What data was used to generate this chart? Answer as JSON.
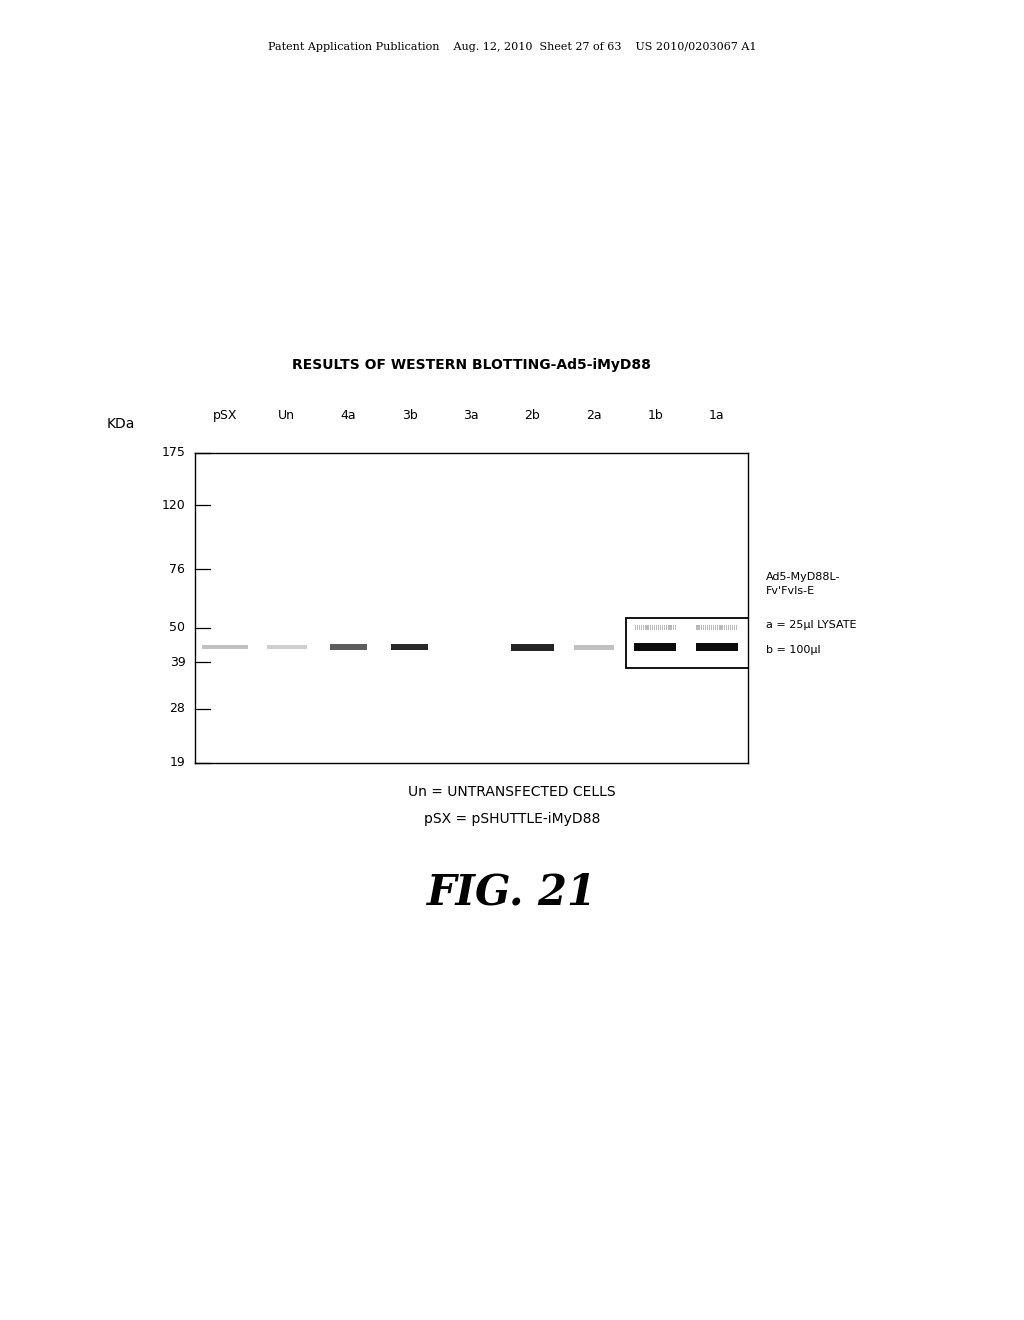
{
  "title": "RESULTS OF WESTERN BLOTTING-Ad5-iMyD88",
  "header_text": "Patent Application Publication    Aug. 12, 2010  Sheet 27 of 63    US 2010/0203067 A1",
  "fig_label": "FIG. 21",
  "kda_label": "KDa",
  "yticks": [
    175,
    120,
    76,
    50,
    39,
    28,
    19
  ],
  "lane_labels": [
    "pSX",
    "Un",
    "4a",
    "3b",
    "3a",
    "2b",
    "2a",
    "1b",
    "1a"
  ],
  "annotation_right_1": "Ad5-MyD88L-",
  "annotation_right_2": "Fv'FvIs-E",
  "annotation_a": "a = 25µl LYSATE",
  "annotation_b": "b = 100µl",
  "footnote_1": "Un = UNTRANSFECTED CELLS",
  "footnote_2": "pSX = pSHUTTLE-iMyD88",
  "bg_color": "#ffffff"
}
